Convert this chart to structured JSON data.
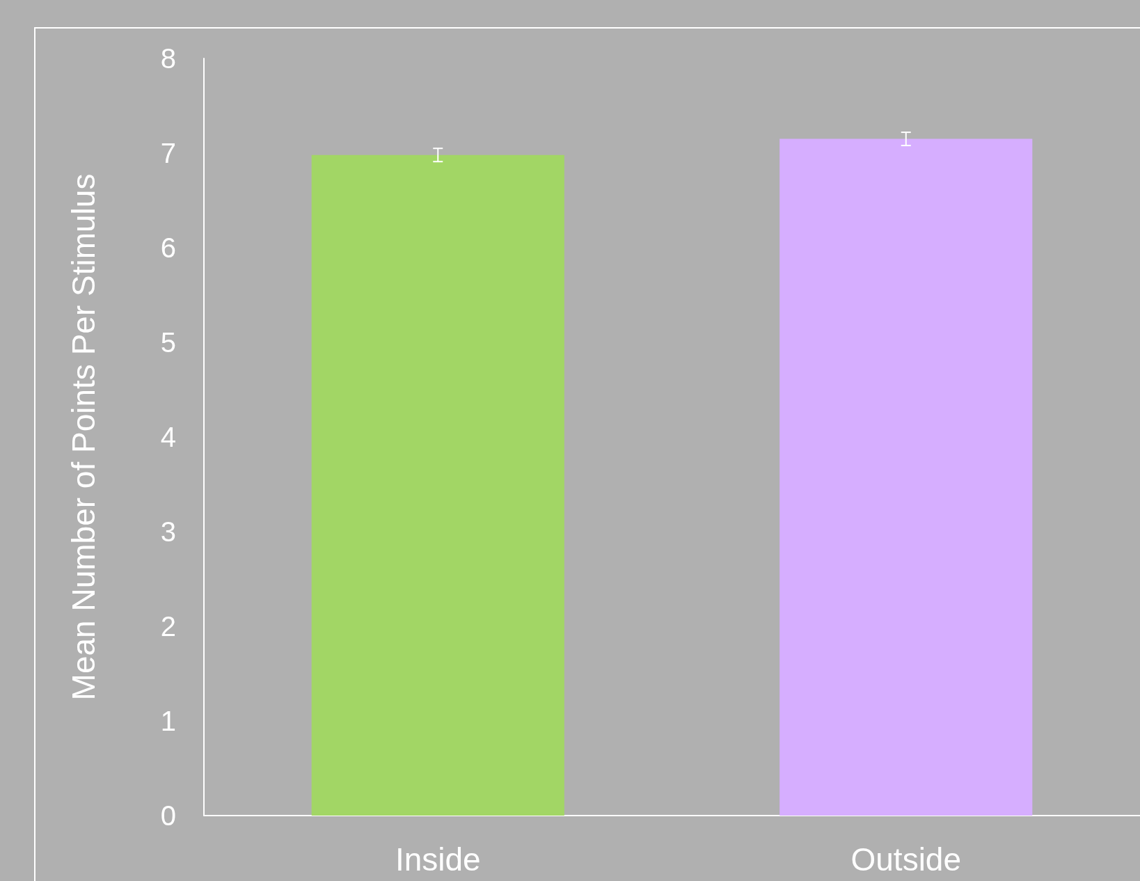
{
  "chart_data": {
    "type": "bar",
    "ylabel": "Mean Number of Points Per Stimulus",
    "categories": [
      "Inside",
      "Outside"
    ],
    "values": [
      6.98,
      7.15
    ],
    "colors": [
      "#a2d665",
      "#d6aeff"
    ],
    "errors": [
      0.07,
      0.07
    ],
    "ylim": [
      0,
      8
    ],
    "yticks": [
      0,
      1,
      2,
      3,
      4,
      5,
      6,
      7,
      8
    ],
    "grid": false
  }
}
